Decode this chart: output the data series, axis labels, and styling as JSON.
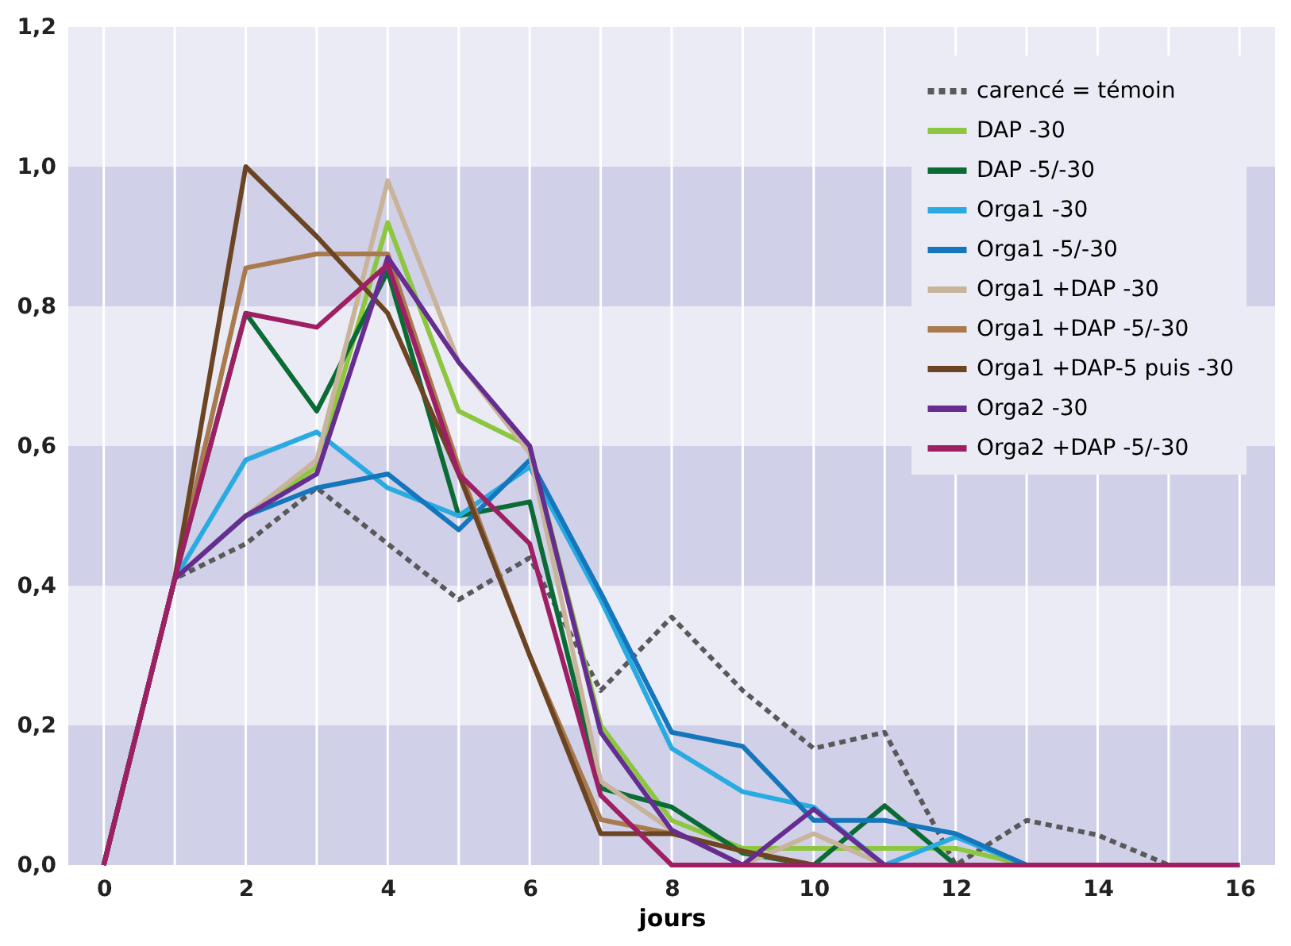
{
  "chart_data": {
    "type": "line",
    "xlabel": "jours",
    "x": [
      0,
      1,
      2,
      3,
      4,
      5,
      6,
      7,
      8,
      9,
      10,
      11,
      12,
      13,
      14,
      15,
      16
    ],
    "series": [
      {
        "name": "carencé = témoin",
        "color": "#595959",
        "line_style": "dashed",
        "values": [
          0,
          0.41,
          0.46,
          0.54,
          0.46,
          0.38,
          0.44,
          0.25,
          0.355,
          0.25,
          0.167,
          0.19,
          0,
          0.064,
          0.043,
          0,
          0
        ]
      },
      {
        "name": "DAP -30",
        "color": "#8dc63f",
        "line_style": "solid",
        "values": [
          0,
          0.41,
          0.5,
          0.57,
          0.92,
          0.65,
          0.6,
          0.2,
          0.064,
          0.024,
          0.024,
          0.024,
          0.024,
          0,
          0,
          null,
          null
        ]
      },
      {
        "name": "DAP -5/-30",
        "color": "#0b6b35",
        "line_style": "solid",
        "values": [
          0,
          0.41,
          0.79,
          0.65,
          0.85,
          0.5,
          0.52,
          0.11,
          0.083,
          0.017,
          0,
          0.085,
          0,
          0,
          0,
          null,
          null
        ]
      },
      {
        "name": "Orga1 -30",
        "color": "#29abe2",
        "line_style": "solid",
        "values": [
          0,
          0.41,
          0.58,
          0.62,
          0.54,
          0.5,
          0.57,
          0.38,
          0.167,
          0.105,
          0.083,
          0,
          0.04,
          0,
          0,
          null,
          null
        ]
      },
      {
        "name": "Orga1 -5/-30",
        "color": "#1576bc",
        "line_style": "solid",
        "values": [
          0,
          0.41,
          0.5,
          0.54,
          0.56,
          0.48,
          0.58,
          0.39,
          0.19,
          0.17,
          0.064,
          0.064,
          0.045,
          0,
          0,
          null,
          null
        ]
      },
      {
        "name": "Orga1 +DAP -30",
        "color": "#c8b49a",
        "line_style": "solid",
        "values": [
          0,
          0.41,
          0.5,
          0.58,
          0.98,
          0.72,
          0.59,
          0.12,
          0.05,
          0,
          0.045,
          0,
          0,
          0,
          0,
          0,
          0
        ]
      },
      {
        "name": "Orga1 +DAP -5/-30",
        "color": "#a87a4e",
        "line_style": "solid",
        "values": [
          0,
          0.41,
          0.855,
          0.875,
          0.875,
          0.57,
          0.3,
          0.065,
          0.045,
          0.02,
          0,
          0,
          0,
          0,
          0,
          null,
          null
        ]
      },
      {
        "name": "Orga1 +DAP-5 puis -30",
        "color": "#6b4423",
        "line_style": "solid",
        "values": [
          0,
          0.41,
          1.0,
          0.9,
          0.79,
          0.56,
          0.3,
          0.045,
          0.045,
          0.02,
          0,
          0,
          0,
          0,
          0,
          null,
          null
        ]
      },
      {
        "name": "Orga2 -30",
        "color": "#662d91",
        "line_style": "solid",
        "values": [
          0,
          0.41,
          0.5,
          0.56,
          0.87,
          0.72,
          0.6,
          0.19,
          0.05,
          0,
          0.08,
          0,
          0,
          0,
          0,
          0,
          0
        ]
      },
      {
        "name": "Orga2 +DAP -5/-30",
        "color": "#9e1f63",
        "line_style": "solid",
        "values": [
          0,
          0.41,
          0.79,
          0.77,
          0.86,
          0.56,
          0.46,
          0.1,
          0,
          0,
          0,
          0,
          0,
          0,
          0,
          0,
          0
        ]
      }
    ],
    "xlim": [
      -0.5,
      16.5
    ],
    "xticks": [
      0,
      {
        "value": 1,
        "label": null
      },
      2,
      {
        "value": 3,
        "label": null
      },
      4,
      {
        "value": 5,
        "label": null
      },
      6,
      {
        "value": 7,
        "label": null
      },
      8,
      {
        "value": 9,
        "label": null
      },
      10,
      {
        "value": 11,
        "label": null
      },
      12,
      {
        "value": 13,
        "label": null
      },
      14,
      {
        "value": 15,
        "label": null
      },
      16
    ],
    "ylim": [
      0,
      1.2
    ],
    "yticks": [
      {
        "value": 0,
        "label": "0,0"
      },
      {
        "value": 0.2,
        "label": "0,2"
      },
      {
        "value": 0.4,
        "label": "0,4"
      },
      {
        "value": 0.6,
        "label": "0,6"
      },
      {
        "value": 0.8,
        "label": "0,8"
      },
      {
        "value": 1.0,
        "label": "1,0"
      },
      {
        "value": 1.2,
        "label": "1,2"
      }
    ],
    "bands": [
      {
        "axis": "y",
        "from": 0,
        "to": 0.2,
        "color": "#d0d0e8"
      },
      {
        "axis": "y",
        "from": 0.4,
        "to": 0.6,
        "color": "#d0d0e8"
      },
      {
        "axis": "y",
        "from": 0.8,
        "to": 1.0,
        "color": "#d0d0e8"
      }
    ],
    "grid": "x",
    "legend": "top right"
  }
}
